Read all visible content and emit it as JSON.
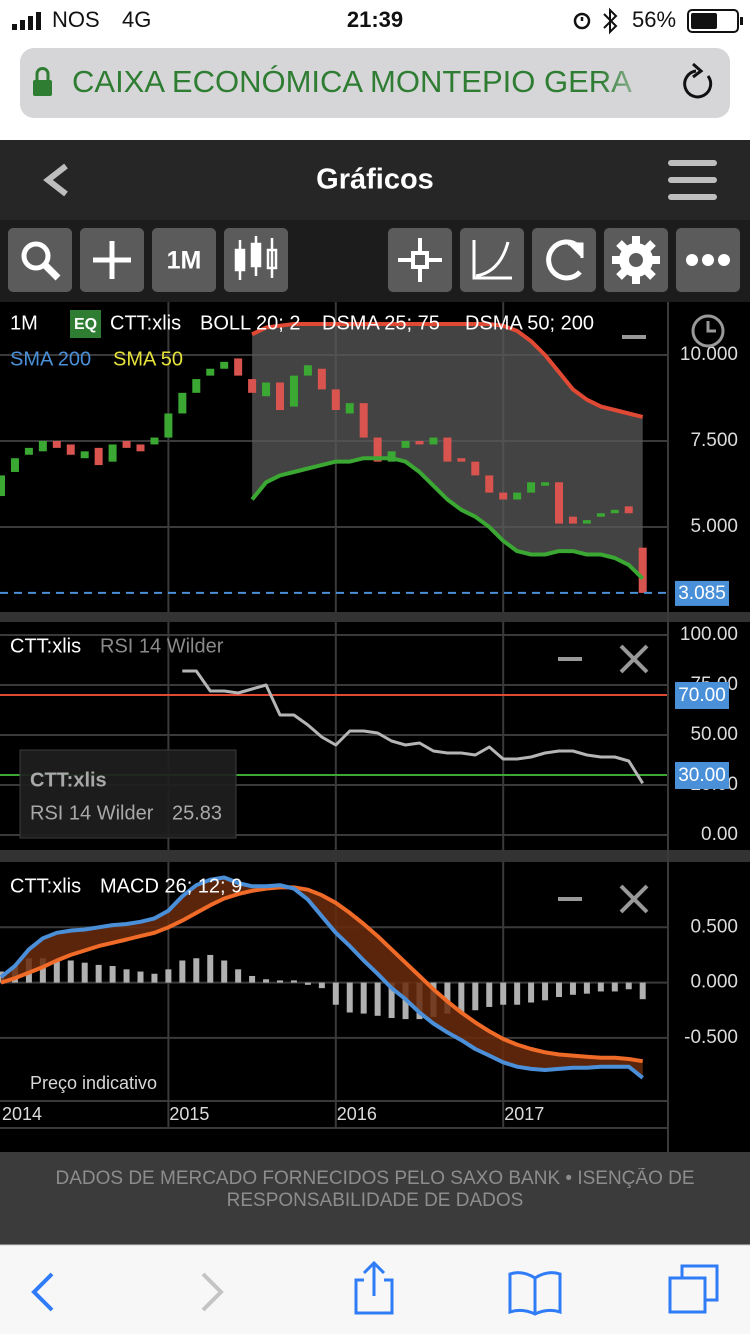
{
  "status_bar": {
    "carrier": "NOS",
    "network": "4G",
    "time": "21:39",
    "battery": "56%"
  },
  "url_bar": {
    "site": "CAIXA ECONÓMICA MONTEPIO GERA"
  },
  "nav": {
    "title": "Gráficos"
  },
  "toolbar": {
    "period": "1M"
  },
  "charts": [
    {
      "type": "candlestick",
      "period": "1M",
      "badge": "EQ",
      "symbol": "CTT:xlis",
      "indicators": [
        "BOLL 20; 2",
        "DSMA 25; 75",
        "DSMA 50; 200"
      ],
      "series_legend": [
        {
          "name": "SMA 200",
          "color": "#4a90d9"
        },
        {
          "name": "SMA 50",
          "color": "#e6e23a"
        }
      ],
      "open": [
        5.9,
        6.6,
        7.1,
        7.2,
        7.5,
        7.4,
        7.0,
        7.3,
        6.9,
        7.5,
        7.4,
        7.4,
        7.6,
        8.3,
        8.9,
        9.4,
        9.6,
        9.9,
        9.3,
        8.8,
        9.2,
        8.5,
        9.4,
        9.6,
        9.0,
        8.3,
        8.6,
        7.6,
        6.9,
        7.3,
        7.5,
        7.4,
        7.6,
        7.0,
        6.9,
        6.5,
        6.0,
        5.8,
        6.0,
        6.2,
        6.3,
        5.3,
        5.1,
        5.3,
        5.4,
        5.6,
        4.4
      ],
      "close": [
        6.5,
        7.0,
        7.3,
        7.5,
        7.3,
        7.1,
        7.2,
        6.8,
        7.4,
        7.3,
        7.2,
        7.6,
        8.3,
        8.9,
        9.3,
        9.6,
        9.8,
        9.4,
        8.9,
        9.2,
        8.4,
        9.4,
        9.7,
        9.0,
        8.4,
        8.6,
        7.6,
        6.9,
        7.2,
        7.5,
        7.4,
        7.6,
        6.9,
        6.9,
        6.5,
        6.0,
        5.8,
        6.0,
        6.3,
        6.3,
        5.1,
        5.1,
        5.2,
        5.4,
        5.5,
        5.4,
        3.085
      ],
      "up_color": "#3aa832",
      "down_color": "#d9534f",
      "bands": {
        "upper": [
          null,
          null,
          null,
          null,
          null,
          null,
          null,
          null,
          null,
          null,
          null,
          null,
          null,
          null,
          null,
          null,
          null,
          null,
          10.6,
          10.8,
          10.85,
          10.9,
          10.9,
          10.9,
          10.9,
          10.9,
          10.9,
          10.9,
          10.9,
          10.9,
          10.9,
          10.9,
          10.9,
          10.9,
          10.9,
          10.9,
          10.85,
          10.7,
          10.4,
          10.0,
          9.5,
          9.0,
          8.7,
          8.5,
          8.4,
          8.3,
          8.2
        ],
        "lower": [
          null,
          null,
          null,
          null,
          null,
          null,
          null,
          null,
          null,
          null,
          null,
          null,
          null,
          null,
          null,
          null,
          null,
          null,
          5.8,
          6.3,
          6.5,
          6.6,
          6.7,
          6.8,
          6.9,
          6.9,
          7.0,
          7.0,
          7.0,
          6.9,
          6.6,
          6.2,
          5.8,
          5.5,
          5.3,
          5.0,
          4.6,
          4.3,
          4.2,
          4.2,
          4.3,
          4.3,
          4.2,
          4.2,
          4.1,
          3.9,
          3.5
        ],
        "upper_color": "#e04a35",
        "lower_color": "#3aa832",
        "fill_color": "#5a5a5a"
      },
      "last_price_color": "#4a90d9",
      "ylim": [
        2.53,
        11.54
      ],
      "yticks": [
        {
          "value": 5,
          "label": "5.000"
        },
        {
          "value": 7.5,
          "label": "7.500"
        },
        {
          "value": 10,
          "label": "10.000"
        }
      ],
      "grid": true
    },
    {
      "type": "line",
      "symbol": "CTT:xlis",
      "name": "RSI 14 Wilder",
      "values": [
        null,
        null,
        null,
        null,
        null,
        null,
        null,
        null,
        null,
        null,
        null,
        null,
        null,
        82,
        82,
        72,
        72,
        71,
        73,
        75,
        60,
        60,
        55,
        49,
        45,
        52,
        52,
        51,
        47,
        45,
        46,
        42,
        41,
        41,
        40,
        44,
        38,
        38,
        39,
        41,
        42,
        42,
        40,
        39,
        39,
        37,
        25.83
      ],
      "color": "#b5b5b5",
      "levels": [
        {
          "value": 70,
          "label": "70.00",
          "color": "#e04a35"
        },
        {
          "value": 30,
          "label": "30.00",
          "color": "#3aa832"
        }
      ],
      "ylim": [
        -7.5,
        106.5
      ],
      "yticks": [
        {
          "value": 0,
          "label": "0.00"
        },
        {
          "value": 25,
          "label": "25.00"
        },
        {
          "value": 50,
          "label": "50.00"
        },
        {
          "value": 75,
          "label": "75.00"
        },
        {
          "value": 100,
          "label": "100.00"
        }
      ],
      "grid": true
    },
    {
      "type": "macd",
      "symbol": "CTT:xlis",
      "name": "MACD 26; 12; 9",
      "note": "Preço indicativo",
      "categories": [
        "2014",
        null,
        null,
        null,
        null,
        null,
        null,
        null,
        null,
        null,
        null,
        null,
        "2015",
        null,
        null,
        null,
        null,
        null,
        null,
        null,
        null,
        null,
        null,
        null,
        "2016",
        null,
        null,
        null,
        null,
        null,
        null,
        null,
        null,
        null,
        null,
        null,
        "2017",
        null,
        null,
        null,
        null,
        null,
        null,
        null,
        null,
        null,
        null
      ],
      "macd": {
        "color": "#4a8fd8",
        "values": [
          0.05,
          0.15,
          0.3,
          0.4,
          0.45,
          0.47,
          0.48,
          0.5,
          0.52,
          0.53,
          0.55,
          0.58,
          0.65,
          0.78,
          0.88,
          0.93,
          0.95,
          0.9,
          0.87,
          0.87,
          0.88,
          0.85,
          0.75,
          0.6,
          0.45,
          0.33,
          0.2,
          0.08,
          -0.05,
          -0.15,
          -0.27,
          -0.37,
          -0.45,
          -0.52,
          -0.6,
          -0.66,
          -0.72,
          -0.76,
          -0.78,
          -0.79,
          -0.78,
          -0.77,
          -0.77,
          -0.76,
          -0.76,
          -0.76,
          -0.86
        ]
      },
      "signal": {
        "color": "#f06a28",
        "values": [
          0.0,
          0.04,
          0.09,
          0.14,
          0.2,
          0.25,
          0.29,
          0.33,
          0.36,
          0.39,
          0.42,
          0.45,
          0.5,
          0.56,
          0.63,
          0.7,
          0.76,
          0.8,
          0.83,
          0.85,
          0.86,
          0.86,
          0.84,
          0.79,
          0.72,
          0.63,
          0.53,
          0.42,
          0.3,
          0.18,
          0.06,
          -0.06,
          -0.17,
          -0.27,
          -0.36,
          -0.44,
          -0.51,
          -0.56,
          -0.6,
          -0.63,
          -0.65,
          -0.66,
          -0.67,
          -0.68,
          -0.68,
          -0.69,
          -0.71
        ]
      },
      "histogram": {
        "color": "#b0b0b0",
        "values": [
          0.1,
          0.15,
          0.22,
          0.22,
          0.2,
          0.2,
          0.18,
          0.16,
          0.15,
          0.12,
          0.1,
          0.08,
          0.12,
          0.2,
          0.22,
          0.25,
          0.2,
          0.12,
          0.06,
          0.03,
          0.02,
          0.02,
          -0.02,
          -0.05,
          -0.2,
          -0.27,
          -0.28,
          -0.3,
          -0.32,
          -0.33,
          -0.33,
          -0.31,
          -0.28,
          -0.27,
          -0.25,
          -0.22,
          -0.2,
          -0.2,
          -0.18,
          -0.16,
          -0.13,
          -0.11,
          -0.1,
          -0.08,
          -0.08,
          -0.06,
          -0.15
        ]
      },
      "fill_color": "#6a2c0c",
      "ylim": [
        -1.07,
        1.09
      ],
      "yticks": [
        {
          "value": -0.5,
          "label": "-0.500"
        },
        {
          "value": 0,
          "label": "0.000"
        },
        {
          "value": 0.5,
          "label": "0.500"
        }
      ],
      "grid": true
    }
  ],
  "footer": {
    "text": "DADOS DE MERCADO FORNECIDOS PELO SAXO BANK • ISENÇÃO DE RESPONSABILIDADE DE DADOS"
  }
}
